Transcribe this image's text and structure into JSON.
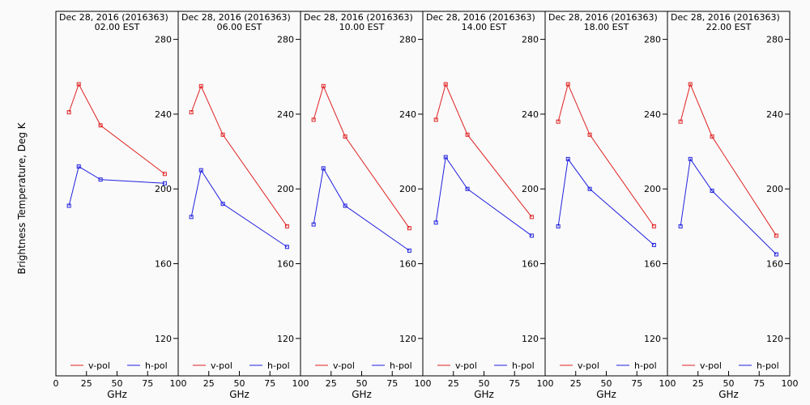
{
  "figure": {
    "ylabel": "Brightness Temperature, Deg K",
    "xlabel": "GHz"
  },
  "chart_data": [
    {
      "type": "line",
      "title": "Dec 28, 2016 (2016363)",
      "subtitle": "02.00 EST",
      "xlabel": "GHz",
      "ylabel": "Brightness Temperature, Deg K",
      "xlim": [
        0,
        100
      ],
      "ylim": [
        100,
        295
      ],
      "x_ticks": [
        0,
        25,
        50,
        75,
        100
      ],
      "x_tick_labels": [
        "0",
        "25",
        "50",
        "75",
        "100"
      ],
      "y_ticks": [
        120,
        160,
        200,
        240,
        280
      ],
      "y_tick_labels": [
        "120",
        "160",
        "200",
        "240",
        "280"
      ],
      "grid": false,
      "legend": "bottom",
      "x": [
        10.7,
        18.7,
        36.5,
        89.0
      ],
      "series": [
        {
          "name": "v-pol",
          "color": "#e02020",
          "values": [
            241,
            256,
            234,
            208
          ]
        },
        {
          "name": "h-pol",
          "color": "#2020e0",
          "values": [
            191,
            212,
            205,
            203
          ]
        }
      ]
    },
    {
      "type": "line",
      "title": "Dec 28, 2016 (2016363)",
      "subtitle": "06.00 EST",
      "xlabel": "GHz",
      "ylabel": "Brightness Temperature, Deg K",
      "xlim": [
        0,
        100
      ],
      "ylim": [
        100,
        295
      ],
      "x_ticks": [
        0,
        25,
        50,
        75,
        100
      ],
      "x_tick_labels": [
        "0",
        "25",
        "50",
        "75",
        "100"
      ],
      "y_ticks": [
        120,
        160,
        200,
        240,
        280
      ],
      "y_tick_labels": [
        "120",
        "160",
        "200",
        "240",
        "280"
      ],
      "grid": false,
      "legend": "bottom",
      "x": [
        10.7,
        18.7,
        36.5,
        89.0
      ],
      "series": [
        {
          "name": "v-pol",
          "color": "#e02020",
          "values": [
            241,
            255,
            229,
            180
          ]
        },
        {
          "name": "h-pol",
          "color": "#2020e0",
          "values": [
            185,
            210,
            192,
            169
          ]
        }
      ]
    },
    {
      "type": "line",
      "title": "Dec 28, 2016 (2016363)",
      "subtitle": "10.00 EST",
      "xlabel": "GHz",
      "ylabel": "Brightness Temperature, Deg K",
      "xlim": [
        0,
        100
      ],
      "ylim": [
        100,
        295
      ],
      "x_ticks": [
        0,
        25,
        50,
        75,
        100
      ],
      "x_tick_labels": [
        "0",
        "25",
        "50",
        "75",
        "100"
      ],
      "y_ticks": [
        120,
        160,
        200,
        240,
        280
      ],
      "y_tick_labels": [
        "120",
        "160",
        "200",
        "240",
        "280"
      ],
      "grid": false,
      "legend": "bottom",
      "x": [
        10.7,
        18.7,
        36.5,
        89.0
      ],
      "series": [
        {
          "name": "v-pol",
          "color": "#e02020",
          "values": [
            237,
            255,
            228,
            179
          ]
        },
        {
          "name": "h-pol",
          "color": "#2020e0",
          "values": [
            181,
            211,
            191,
            167
          ]
        }
      ]
    },
    {
      "type": "line",
      "title": "Dec 28, 2016 (2016363)",
      "subtitle": "14.00 EST",
      "xlabel": "GHz",
      "ylabel": "Brightness Temperature, Deg K",
      "xlim": [
        0,
        100
      ],
      "ylim": [
        100,
        295
      ],
      "x_ticks": [
        0,
        25,
        50,
        75,
        100
      ],
      "x_tick_labels": [
        "0",
        "25",
        "50",
        "75",
        "100"
      ],
      "y_ticks": [
        120,
        160,
        200,
        240,
        280
      ],
      "y_tick_labels": [
        "120",
        "160",
        "200",
        "240",
        "280"
      ],
      "grid": false,
      "legend": "bottom",
      "x": [
        10.7,
        18.7,
        36.5,
        89.0
      ],
      "series": [
        {
          "name": "v-pol",
          "color": "#e02020",
          "values": [
            237,
            256,
            229,
            185
          ]
        },
        {
          "name": "h-pol",
          "color": "#2020e0",
          "values": [
            182,
            217,
            200,
            175
          ]
        }
      ]
    },
    {
      "type": "line",
      "title": "Dec 28, 2016 (2016363)",
      "subtitle": "18.00 EST",
      "xlabel": "GHz",
      "ylabel": "Brightness Temperature, Deg K",
      "xlim": [
        0,
        100
      ],
      "ylim": [
        100,
        295
      ],
      "x_ticks": [
        0,
        25,
        50,
        75,
        100
      ],
      "x_tick_labels": [
        "0",
        "25",
        "50",
        "75",
        "100"
      ],
      "y_ticks": [
        120,
        160,
        200,
        240,
        280
      ],
      "y_tick_labels": [
        "120",
        "160",
        "200",
        "240",
        "280"
      ],
      "grid": false,
      "legend": "bottom",
      "x": [
        10.7,
        18.7,
        36.5,
        89.0
      ],
      "series": [
        {
          "name": "v-pol",
          "color": "#e02020",
          "values": [
            236,
            256,
            229,
            180
          ]
        },
        {
          "name": "h-pol",
          "color": "#2020e0",
          "values": [
            180,
            216,
            200,
            170
          ]
        }
      ]
    },
    {
      "type": "line",
      "title": "Dec 28, 2016 (2016363)",
      "subtitle": "22.00 EST",
      "xlabel": "GHz",
      "ylabel": "Brightness Temperature, Deg K",
      "xlim": [
        0,
        100
      ],
      "ylim": [
        100,
        295
      ],
      "x_ticks": [
        0,
        25,
        50,
        75,
        100
      ],
      "x_tick_labels": [
        "0",
        "25",
        "50",
        "75",
        "100"
      ],
      "y_ticks": [
        120,
        160,
        200,
        240,
        280
      ],
      "y_tick_labels": [
        "120",
        "160",
        "200",
        "240",
        "280"
      ],
      "grid": false,
      "legend": "bottom",
      "x": [
        10.7,
        18.7,
        36.5,
        89.0
      ],
      "series": [
        {
          "name": "v-pol",
          "color": "#e02020",
          "values": [
            236,
            256,
            228,
            175
          ]
        },
        {
          "name": "h-pol",
          "color": "#2020e0",
          "values": [
            180,
            216,
            199,
            165
          ]
        }
      ]
    }
  ]
}
